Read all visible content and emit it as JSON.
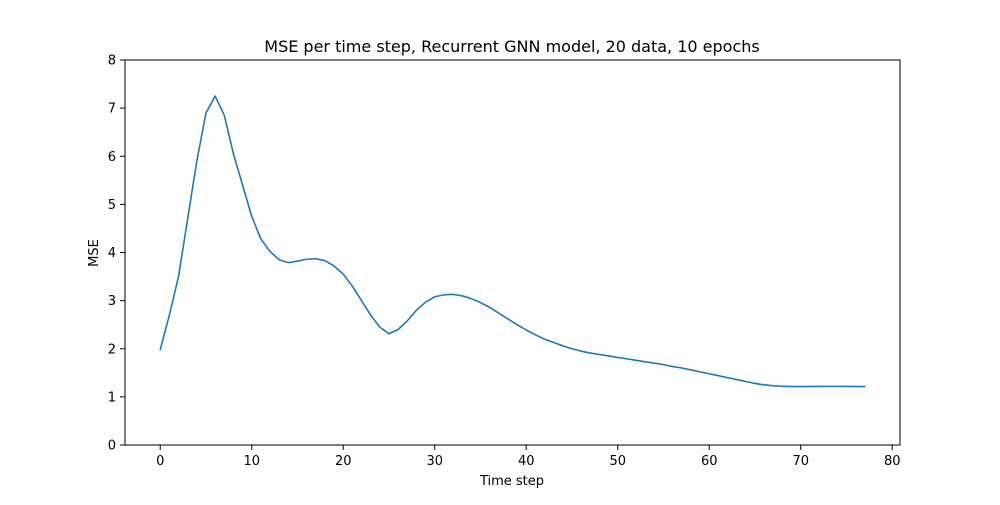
{
  "chart_data": {
    "type": "line",
    "title": "MSE per time step, Recurrent GNN model, 20 data, 10 epochs",
    "xlabel": "Time step",
    "ylabel": "MSE",
    "xlim": [
      -3.85,
      80.85
    ],
    "ylim": [
      0,
      8
    ],
    "xticks": [
      0,
      10,
      20,
      30,
      40,
      50,
      60,
      70,
      80
    ],
    "yticks": [
      0,
      1,
      2,
      3,
      4,
      5,
      6,
      7,
      8
    ],
    "grid": false,
    "series": [
      {
        "color": "#1f77b4",
        "x": [
          0,
          1,
          2,
          3,
          4,
          5,
          6,
          7,
          8,
          9,
          10,
          11,
          12,
          13,
          14,
          15,
          16,
          17,
          18,
          19,
          20,
          21,
          22,
          23,
          24,
          25,
          26,
          27,
          28,
          29,
          30,
          31,
          32,
          33,
          34,
          35,
          36,
          37,
          38,
          39,
          40,
          41,
          42,
          43,
          44,
          45,
          46,
          47,
          48,
          49,
          50,
          51,
          52,
          53,
          54,
          55,
          56,
          57,
          58,
          59,
          60,
          61,
          62,
          63,
          64,
          65,
          66,
          67,
          68,
          69,
          70,
          71,
          72,
          73,
          74,
          75,
          76,
          77
        ],
        "y": [
          1.98,
          2.7,
          3.5,
          4.7,
          5.9,
          6.9,
          7.25,
          6.85,
          6.05,
          5.4,
          4.75,
          4.28,
          4.02,
          3.85,
          3.79,
          3.82,
          3.86,
          3.87,
          3.83,
          3.72,
          3.55,
          3.3,
          3.0,
          2.7,
          2.45,
          2.31,
          2.4,
          2.58,
          2.8,
          2.97,
          3.08,
          3.12,
          3.13,
          3.1,
          3.04,
          2.96,
          2.86,
          2.74,
          2.62,
          2.5,
          2.39,
          2.29,
          2.2,
          2.13,
          2.06,
          2.0,
          1.95,
          1.91,
          1.88,
          1.85,
          1.82,
          1.79,
          1.76,
          1.73,
          1.7,
          1.67,
          1.63,
          1.6,
          1.56,
          1.52,
          1.48,
          1.44,
          1.4,
          1.36,
          1.32,
          1.28,
          1.25,
          1.23,
          1.22,
          1.215,
          1.215,
          1.215,
          1.217,
          1.218,
          1.218,
          1.217,
          1.215,
          1.215
        ]
      }
    ]
  }
}
